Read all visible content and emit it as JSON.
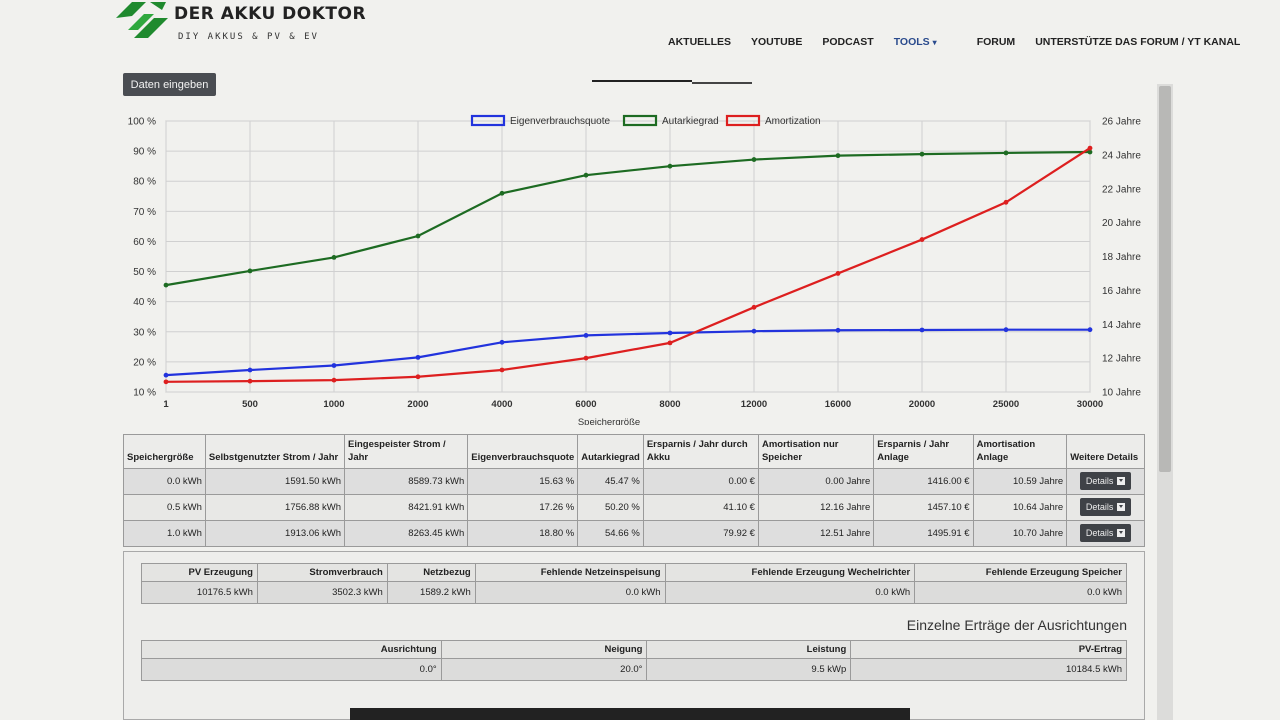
{
  "header": {
    "brand": "DER AKKU DOKTOR",
    "tagline": "DIY AKKUS & PV & EV",
    "nav": [
      "AKTUELLES",
      "YOUTUBE",
      "PODCAST",
      "TOOLS",
      "FORUM",
      "UNTERSTÜTZE DAS FORUM / YT KANAL"
    ],
    "nav_active": "TOOLS"
  },
  "daten_button": "Daten eingeben",
  "chart_data": {
    "type": "line",
    "xlabel": "Speichergröße",
    "categories": [
      "1",
      "500",
      "1000",
      "2000",
      "4000",
      "6000",
      "8000",
      "12000",
      "16000",
      "20000",
      "25000",
      "30000"
    ],
    "y_left_ticks": [
      "100 %",
      "90 %",
      "80 %",
      "70 %",
      "60 %",
      "50 %",
      "40 %",
      "30 %",
      "20 %",
      "10 %"
    ],
    "y_right_ticks": [
      "26 Jahre",
      "24 Jahre",
      "22 Jahre",
      "20 Jahre",
      "18 Jahre",
      "16 Jahre",
      "14 Jahre",
      "12 Jahre",
      "10 Jahre"
    ],
    "ylim_left": [
      10,
      100
    ],
    "ylim_right": [
      10,
      26
    ],
    "grid": true,
    "legend_position": "top-center",
    "series": [
      {
        "name": "Eigenverbrauchsquote",
        "color": "#2233dd",
        "axis": "left",
        "values": [
          15.6,
          17.3,
          18.8,
          21.5,
          26.5,
          28.8,
          29.6,
          30.2,
          30.5,
          30.6,
          30.7,
          30.7
        ]
      },
      {
        "name": "Autarkiegrad",
        "color": "#1d6b22",
        "axis": "left",
        "values": [
          45.5,
          50.2,
          54.7,
          61.8,
          76.0,
          82.0,
          85.0,
          87.2,
          88.5,
          89.0,
          89.4,
          89.7
        ]
      },
      {
        "name": "Amortization",
        "color": "#dd1f1f",
        "axis": "right",
        "values": [
          10.6,
          10.64,
          10.7,
          10.9,
          11.3,
          12.0,
          12.9,
          15.0,
          17.0,
          19.0,
          21.2,
          24.4
        ]
      }
    ]
  },
  "table1": {
    "headers": [
      "Speichergröße",
      "Selbstgenutzter Strom / Jahr",
      "Eingespeister Strom / Jahr",
      "Eigenverbrauchsquote",
      "Autarkiegrad",
      "Ersparnis / Jahr durch Akku",
      "Amortisation nur Speicher",
      "Ersparnis / Jahr Anlage",
      "Amortisation Anlage",
      "Weitere Details"
    ],
    "rows": [
      [
        "0.0 kWh",
        "1591.50 kWh",
        "8589.73 kWh",
        "15.63 %",
        "45.47 %",
        "0.00 €",
        "0.00 Jahre",
        "1416.00 €",
        "10.59 Jahre"
      ],
      [
        "0.5 kWh",
        "1756.88 kWh",
        "8421.91 kWh",
        "17.26 %",
        "50.20 %",
        "41.10 €",
        "12.16 Jahre",
        "1457.10 €",
        "10.64 Jahre"
      ],
      [
        "1.0 kWh",
        "1913.06 kWh",
        "8263.45 kWh",
        "18.80 %",
        "54.66 %",
        "79.92 €",
        "12.51 Jahre",
        "1495.91 €",
        "10.70 Jahre"
      ]
    ],
    "details_label": "Details"
  },
  "table2": {
    "headers": [
      "PV Erzeugung",
      "Stromverbrauch",
      "Netzbezug",
      "Fehlende Netzeinspeisung",
      "Fehlende Erzeugung Wechelrichter",
      "Fehlende Erzeugung Speicher"
    ],
    "values": [
      "10176.5 kWh",
      "3502.3 kWh",
      "1589.2 kWh",
      "0.0 kWh",
      "0.0 kWh",
      "0.0 kWh"
    ]
  },
  "section_title": "Einzelne Erträge der Ausrichtungen",
  "table3": {
    "headers": [
      "Ausrichtung",
      "Neigung",
      "Leistung",
      "PV-Ertrag"
    ],
    "values": [
      "0.0°",
      "20.0°",
      "9.5 kWp",
      "10184.5 kWh"
    ]
  }
}
